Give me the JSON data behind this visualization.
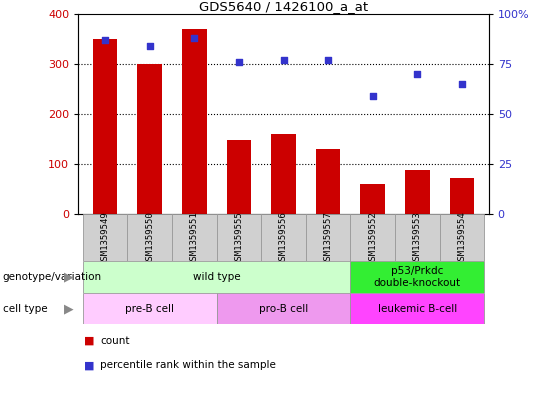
{
  "title": "GDS5640 / 1426100_a_at",
  "samples": [
    "GSM1359549",
    "GSM1359550",
    "GSM1359551",
    "GSM1359555",
    "GSM1359556",
    "GSM1359557",
    "GSM1359552",
    "GSM1359553",
    "GSM1359554"
  ],
  "counts": [
    350,
    300,
    370,
    148,
    160,
    130,
    60,
    88,
    72
  ],
  "percentiles": [
    87,
    84,
    88,
    76,
    77,
    77,
    59,
    70,
    65
  ],
  "ylim_left": [
    0,
    400
  ],
  "ylim_right": [
    0,
    100
  ],
  "yticks_left": [
    0,
    100,
    200,
    300,
    400
  ],
  "yticks_right": [
    0,
    25,
    50,
    75,
    100
  ],
  "ytick_right_labels": [
    "0",
    "25",
    "50",
    "75",
    "100%"
  ],
  "bar_color": "#cc0000",
  "dot_color": "#3333cc",
  "grid_color": "#000000",
  "genotype_groups": [
    {
      "label": "wild type",
      "start": 0,
      "end": 6,
      "color": "#ccffcc"
    },
    {
      "label": "p53/Prkdc\ndouble-knockout",
      "start": 6,
      "end": 9,
      "color": "#33ee33"
    }
  ],
  "cell_type_groups": [
    {
      "label": "pre-B cell",
      "start": 0,
      "end": 3,
      "color": "#ffccff"
    },
    {
      "label": "pro-B cell",
      "start": 3,
      "end": 6,
      "color": "#ee99ee"
    },
    {
      "label": "leukemic B-cell",
      "start": 6,
      "end": 9,
      "color": "#ff44ff"
    }
  ],
  "legend_count_label": "count",
  "legend_pct_label": "percentile rank within the sample",
  "genotype_label": "genotype/variation",
  "cell_type_label": "cell type",
  "sample_bg_color": "#d0d0d0",
  "sample_border_color": "#999999"
}
